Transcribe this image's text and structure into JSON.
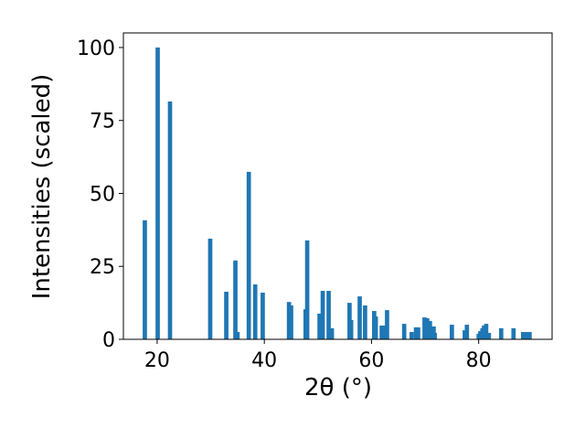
{
  "chart_data": {
    "type": "bar",
    "xlabel": "2θ (°)",
    "ylabel": "Intensities (scaled)",
    "color": "#1f77b4",
    "grid": false,
    "x": [
      17.7,
      20.1,
      22.4,
      29.9,
      32.9,
      34.6,
      35.0,
      37.1,
      38.3,
      39.7,
      44.6,
      45.0,
      47.7,
      48.0,
      50.3,
      50.9,
      52.0,
      52.6,
      55.9,
      56.2,
      57.8,
      58.8,
      60.5,
      60.8,
      61.9,
      62.2,
      62.9,
      66.1,
      67.5,
      68.3,
      68.7,
      69.9,
      70.4,
      70.9,
      71.6,
      71.8,
      75.0,
      77.4,
      77.8,
      80.0,
      80.3,
      80.7,
      81.0,
      81.4,
      81.9,
      84.2,
      86.5,
      88.3,
      88.8,
      89.5
    ],
    "values": [
      40.8,
      100,
      81.5,
      34.5,
      16.3,
      27,
      2.5,
      57.4,
      18.8,
      16,
      12.8,
      11.6,
      10.3,
      33.9,
      8.8,
      16.6,
      16.6,
      3.8,
      12.5,
      6.6,
      14.7,
      11.6,
      9.7,
      7.8,
      4.7,
      4.7,
      10.0,
      5.3,
      2.5,
      4.1,
      4.1,
      7.5,
      7.2,
      6.3,
      4.4,
      2.2,
      5.0,
      3.1,
      5.0,
      1.9,
      2.8,
      3.8,
      4.7,
      5.3,
      2.2,
      3.8,
      3.8,
      2.5,
      2.5,
      2.5
    ],
    "xlim": [
      13.7,
      93.7
    ],
    "xticks": [
      20,
      40,
      60,
      80
    ],
    "ylim": [
      0,
      105
    ],
    "yticks": [
      0,
      25,
      50,
      75,
      100
    ]
  }
}
